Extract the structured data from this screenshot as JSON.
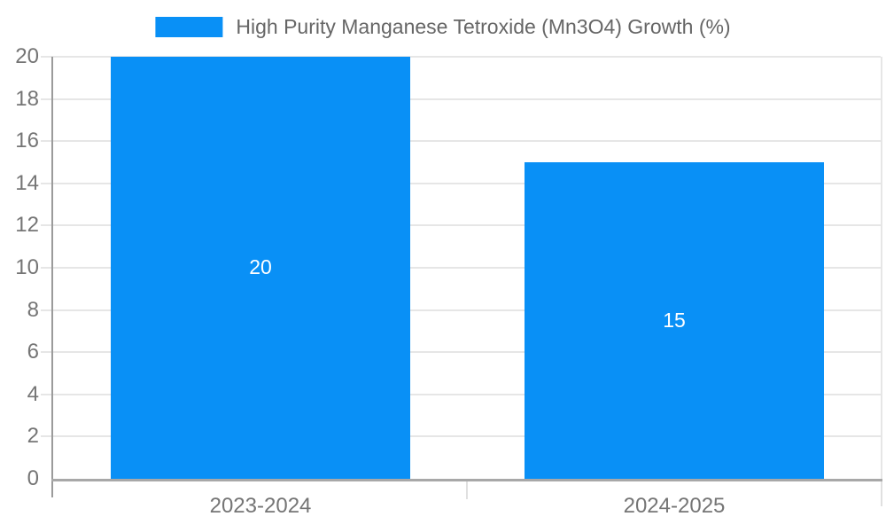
{
  "chart_data": {
    "type": "bar",
    "title": "",
    "categories": [
      "2023-2024",
      "2024-2025"
    ],
    "series": [
      {
        "name": "High Purity Manganese Tetroxide (Mn3O4) Growth (%)",
        "values": [
          20,
          15
        ]
      }
    ],
    "data_labels": [
      "20",
      "15"
    ],
    "ylim": [
      0,
      20
    ],
    "yticks": [
      0,
      2,
      4,
      6,
      8,
      10,
      12,
      14,
      16,
      18,
      20
    ],
    "grid": true,
    "legend_position": "top-center",
    "colors": {
      "bar": "#0990F6",
      "grid_line": "#e6e6e6",
      "y_axis_line": "#9b9b9b",
      "x_axis_line": "#a8a8a8",
      "right_border": "#e6e6e6",
      "outer_tick": "#e0e0e0",
      "tick_text": "#757575",
      "legend_text": "#666666",
      "bar_label_text": "#ffffff"
    }
  }
}
